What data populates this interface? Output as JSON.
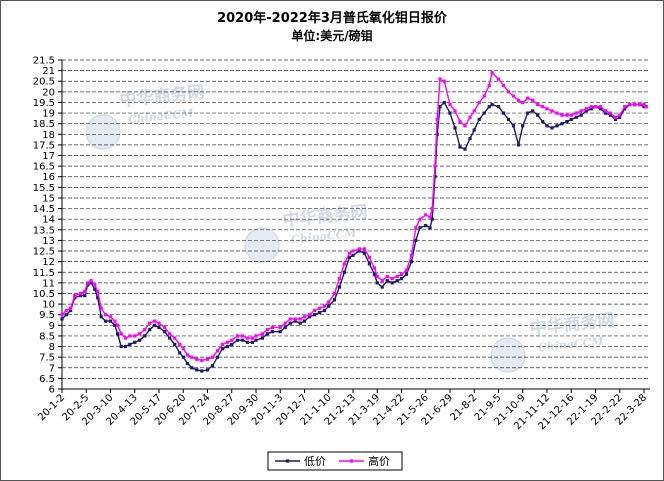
{
  "watermark": {
    "cn": "中华商务网",
    "en": "ChinaCCM"
  },
  "chart_data": {
    "type": "line",
    "title": "2020年-2022年3月普氏氧化钼日报价",
    "subtitle": "单位:美元/磅钼",
    "ylim": [
      6,
      21.5
    ],
    "grid": true,
    "legend": "bottom",
    "y_ticks": [
      "21.5",
      "21",
      "20.5",
      "20",
      "19.5",
      "19",
      "18.5",
      "18",
      "17.5",
      "17",
      "16.5",
      "16",
      "15.5",
      "15",
      "14.5",
      "14",
      "13.5",
      "13",
      "12.5",
      "12",
      "11.5",
      "11",
      "10.5",
      "10",
      "9.5",
      "9",
      "8.5",
      "8",
      "7.5",
      "7",
      "6.5",
      "6"
    ],
    "x_ticks": [
      "20-1-2",
      "20-2-5",
      "20-3-10",
      "20-4-13",
      "20-5-17",
      "20-6-20",
      "20-7-24",
      "20-8-27",
      "20-9-30",
      "20-11-3",
      "20-12-7",
      "21-1-10",
      "21-2-13",
      "21-3-19",
      "21-4-22",
      "21-5-26",
      "21-6-29",
      "21-8-2",
      "21-9-5",
      "21-10-9",
      "21-11-12",
      "21-12-16",
      "22-1-19",
      "22-2-22",
      "22-3-28"
    ],
    "x": [
      "2020-01-02",
      "2020-01-08",
      "2020-01-14",
      "2020-01-20",
      "2020-01-28",
      "2020-02-03",
      "2020-02-07",
      "2020-02-12",
      "2020-02-17",
      "2020-02-21",
      "2020-02-26",
      "2020-03-03",
      "2020-03-10",
      "2020-03-16",
      "2020-03-20",
      "2020-03-25",
      "2020-03-31",
      "2020-04-06",
      "2020-04-13",
      "2020-04-20",
      "2020-04-27",
      "2020-05-04",
      "2020-05-11",
      "2020-05-17",
      "2020-05-25",
      "2020-06-01",
      "2020-06-08",
      "2020-06-15",
      "2020-06-20",
      "2020-06-26",
      "2020-07-02",
      "2020-07-09",
      "2020-07-16",
      "2020-07-24",
      "2020-07-31",
      "2020-08-07",
      "2020-08-14",
      "2020-08-21",
      "2020-08-27",
      "2020-09-04",
      "2020-09-11",
      "2020-09-18",
      "2020-09-25",
      "2020-09-30",
      "2020-10-09",
      "2020-10-16",
      "2020-10-23",
      "2020-11-03",
      "2020-11-10",
      "2020-11-17",
      "2020-11-24",
      "2020-12-01",
      "2020-12-07",
      "2020-12-14",
      "2020-12-21",
      "2020-12-28",
      "2021-01-04",
      "2021-01-10",
      "2021-01-18",
      "2021-01-25",
      "2021-02-01",
      "2021-02-08",
      "2021-02-13",
      "2021-02-22",
      "2021-03-01",
      "2021-03-08",
      "2021-03-15",
      "2021-03-19",
      "2021-03-26",
      "2021-04-02",
      "2021-04-09",
      "2021-04-16",
      "2021-04-22",
      "2021-04-29",
      "2021-05-06",
      "2021-05-12",
      "2021-05-18",
      "2021-05-26",
      "2021-06-01",
      "2021-06-04",
      "2021-06-08",
      "2021-06-11",
      "2021-06-15",
      "2021-06-21",
      "2021-06-29",
      "2021-07-06",
      "2021-07-13",
      "2021-07-20",
      "2021-07-27",
      "2021-08-02",
      "2021-08-09",
      "2021-08-16",
      "2021-08-23",
      "2021-08-27",
      "2021-09-05",
      "2021-09-12",
      "2021-09-19",
      "2021-09-26",
      "2021-10-03",
      "2021-10-09",
      "2021-10-16",
      "2021-10-23",
      "2021-10-30",
      "2021-11-06",
      "2021-11-12",
      "2021-11-19",
      "2021-11-26",
      "2021-12-03",
      "2021-12-10",
      "2021-12-16",
      "2021-12-23",
      "2021-12-30",
      "2022-01-06",
      "2022-01-13",
      "2022-01-19",
      "2022-01-26",
      "2022-02-02",
      "2022-02-09",
      "2022-02-16",
      "2022-02-22",
      "2022-03-01",
      "2022-03-08",
      "2022-03-15",
      "2022-03-22",
      "2022-03-28",
      "2022-03-31"
    ],
    "series": [
      {
        "name": "低价",
        "color": "#1a1a6e",
        "values": [
          9.3,
          9.5,
          9.7,
          10.3,
          10.4,
          10.4,
          10.9,
          11.0,
          10.7,
          10.3,
          9.4,
          9.2,
          9.2,
          9.0,
          8.6,
          8.0,
          8.0,
          8.1,
          8.2,
          8.3,
          8.5,
          8.8,
          9.0,
          8.9,
          8.7,
          8.4,
          8.1,
          7.7,
          7.5,
          7.2,
          7.0,
          6.9,
          6.85,
          6.9,
          7.1,
          7.5,
          7.9,
          8.0,
          8.1,
          8.3,
          8.3,
          8.2,
          8.2,
          8.3,
          8.4,
          8.6,
          8.7,
          8.7,
          8.9,
          9.1,
          9.2,
          9.1,
          9.2,
          9.4,
          9.5,
          9.6,
          9.7,
          9.9,
          10.2,
          10.8,
          11.5,
          12.2,
          12.3,
          12.5,
          12.4,
          11.9,
          11.4,
          11.0,
          10.8,
          11.1,
          11.0,
          11.1,
          11.2,
          11.4,
          12.0,
          13.0,
          13.6,
          13.7,
          13.6,
          14.0,
          16.0,
          18.0,
          19.3,
          19.5,
          19.0,
          18.3,
          17.4,
          17.3,
          17.8,
          18.2,
          18.7,
          19.0,
          19.3,
          19.4,
          19.3,
          19.0,
          18.7,
          18.4,
          17.5,
          18.4,
          19.0,
          19.1,
          18.9,
          18.6,
          18.4,
          18.3,
          18.4,
          18.5,
          18.6,
          18.7,
          18.8,
          18.9,
          19.1,
          19.2,
          19.3,
          19.2,
          19.0,
          18.9,
          18.7,
          18.8,
          19.2,
          19.4,
          19.4,
          19.4,
          19.3,
          19.3
        ]
      },
      {
        "name": "高价",
        "color": "#ff00ff",
        "values": [
          9.5,
          9.7,
          9.8,
          10.4,
          10.5,
          10.6,
          11.0,
          11.1,
          10.9,
          10.6,
          9.8,
          9.5,
          9.4,
          9.2,
          9.0,
          8.6,
          8.4,
          8.5,
          8.5,
          8.6,
          8.8,
          9.1,
          9.2,
          9.1,
          8.9,
          8.6,
          8.4,
          8.1,
          7.9,
          7.6,
          7.5,
          7.4,
          7.35,
          7.4,
          7.5,
          7.8,
          8.1,
          8.2,
          8.3,
          8.5,
          8.5,
          8.4,
          8.4,
          8.5,
          8.6,
          8.8,
          8.9,
          8.9,
          9.1,
          9.3,
          9.3,
          9.3,
          9.4,
          9.5,
          9.7,
          9.8,
          9.9,
          10.1,
          10.5,
          11.2,
          11.9,
          12.4,
          12.5,
          12.6,
          12.6,
          12.2,
          11.7,
          11.3,
          11.1,
          11.3,
          11.2,
          11.3,
          11.4,
          11.6,
          12.3,
          13.6,
          14.0,
          14.2,
          14.1,
          14.5,
          16.5,
          18.7,
          20.6,
          20.5,
          19.4,
          19.1,
          18.6,
          18.4,
          18.8,
          19.1,
          19.5,
          19.8,
          20.3,
          20.9,
          20.6,
          20.3,
          20.0,
          19.8,
          19.6,
          19.5,
          19.7,
          19.6,
          19.4,
          19.3,
          19.2,
          19.1,
          19.0,
          18.9,
          18.9,
          18.9,
          19.0,
          19.1,
          19.2,
          19.3,
          19.3,
          19.3,
          19.1,
          19.0,
          18.8,
          18.9,
          19.3,
          19.4,
          19.4,
          19.4,
          19.4,
          19.3
        ]
      }
    ]
  }
}
